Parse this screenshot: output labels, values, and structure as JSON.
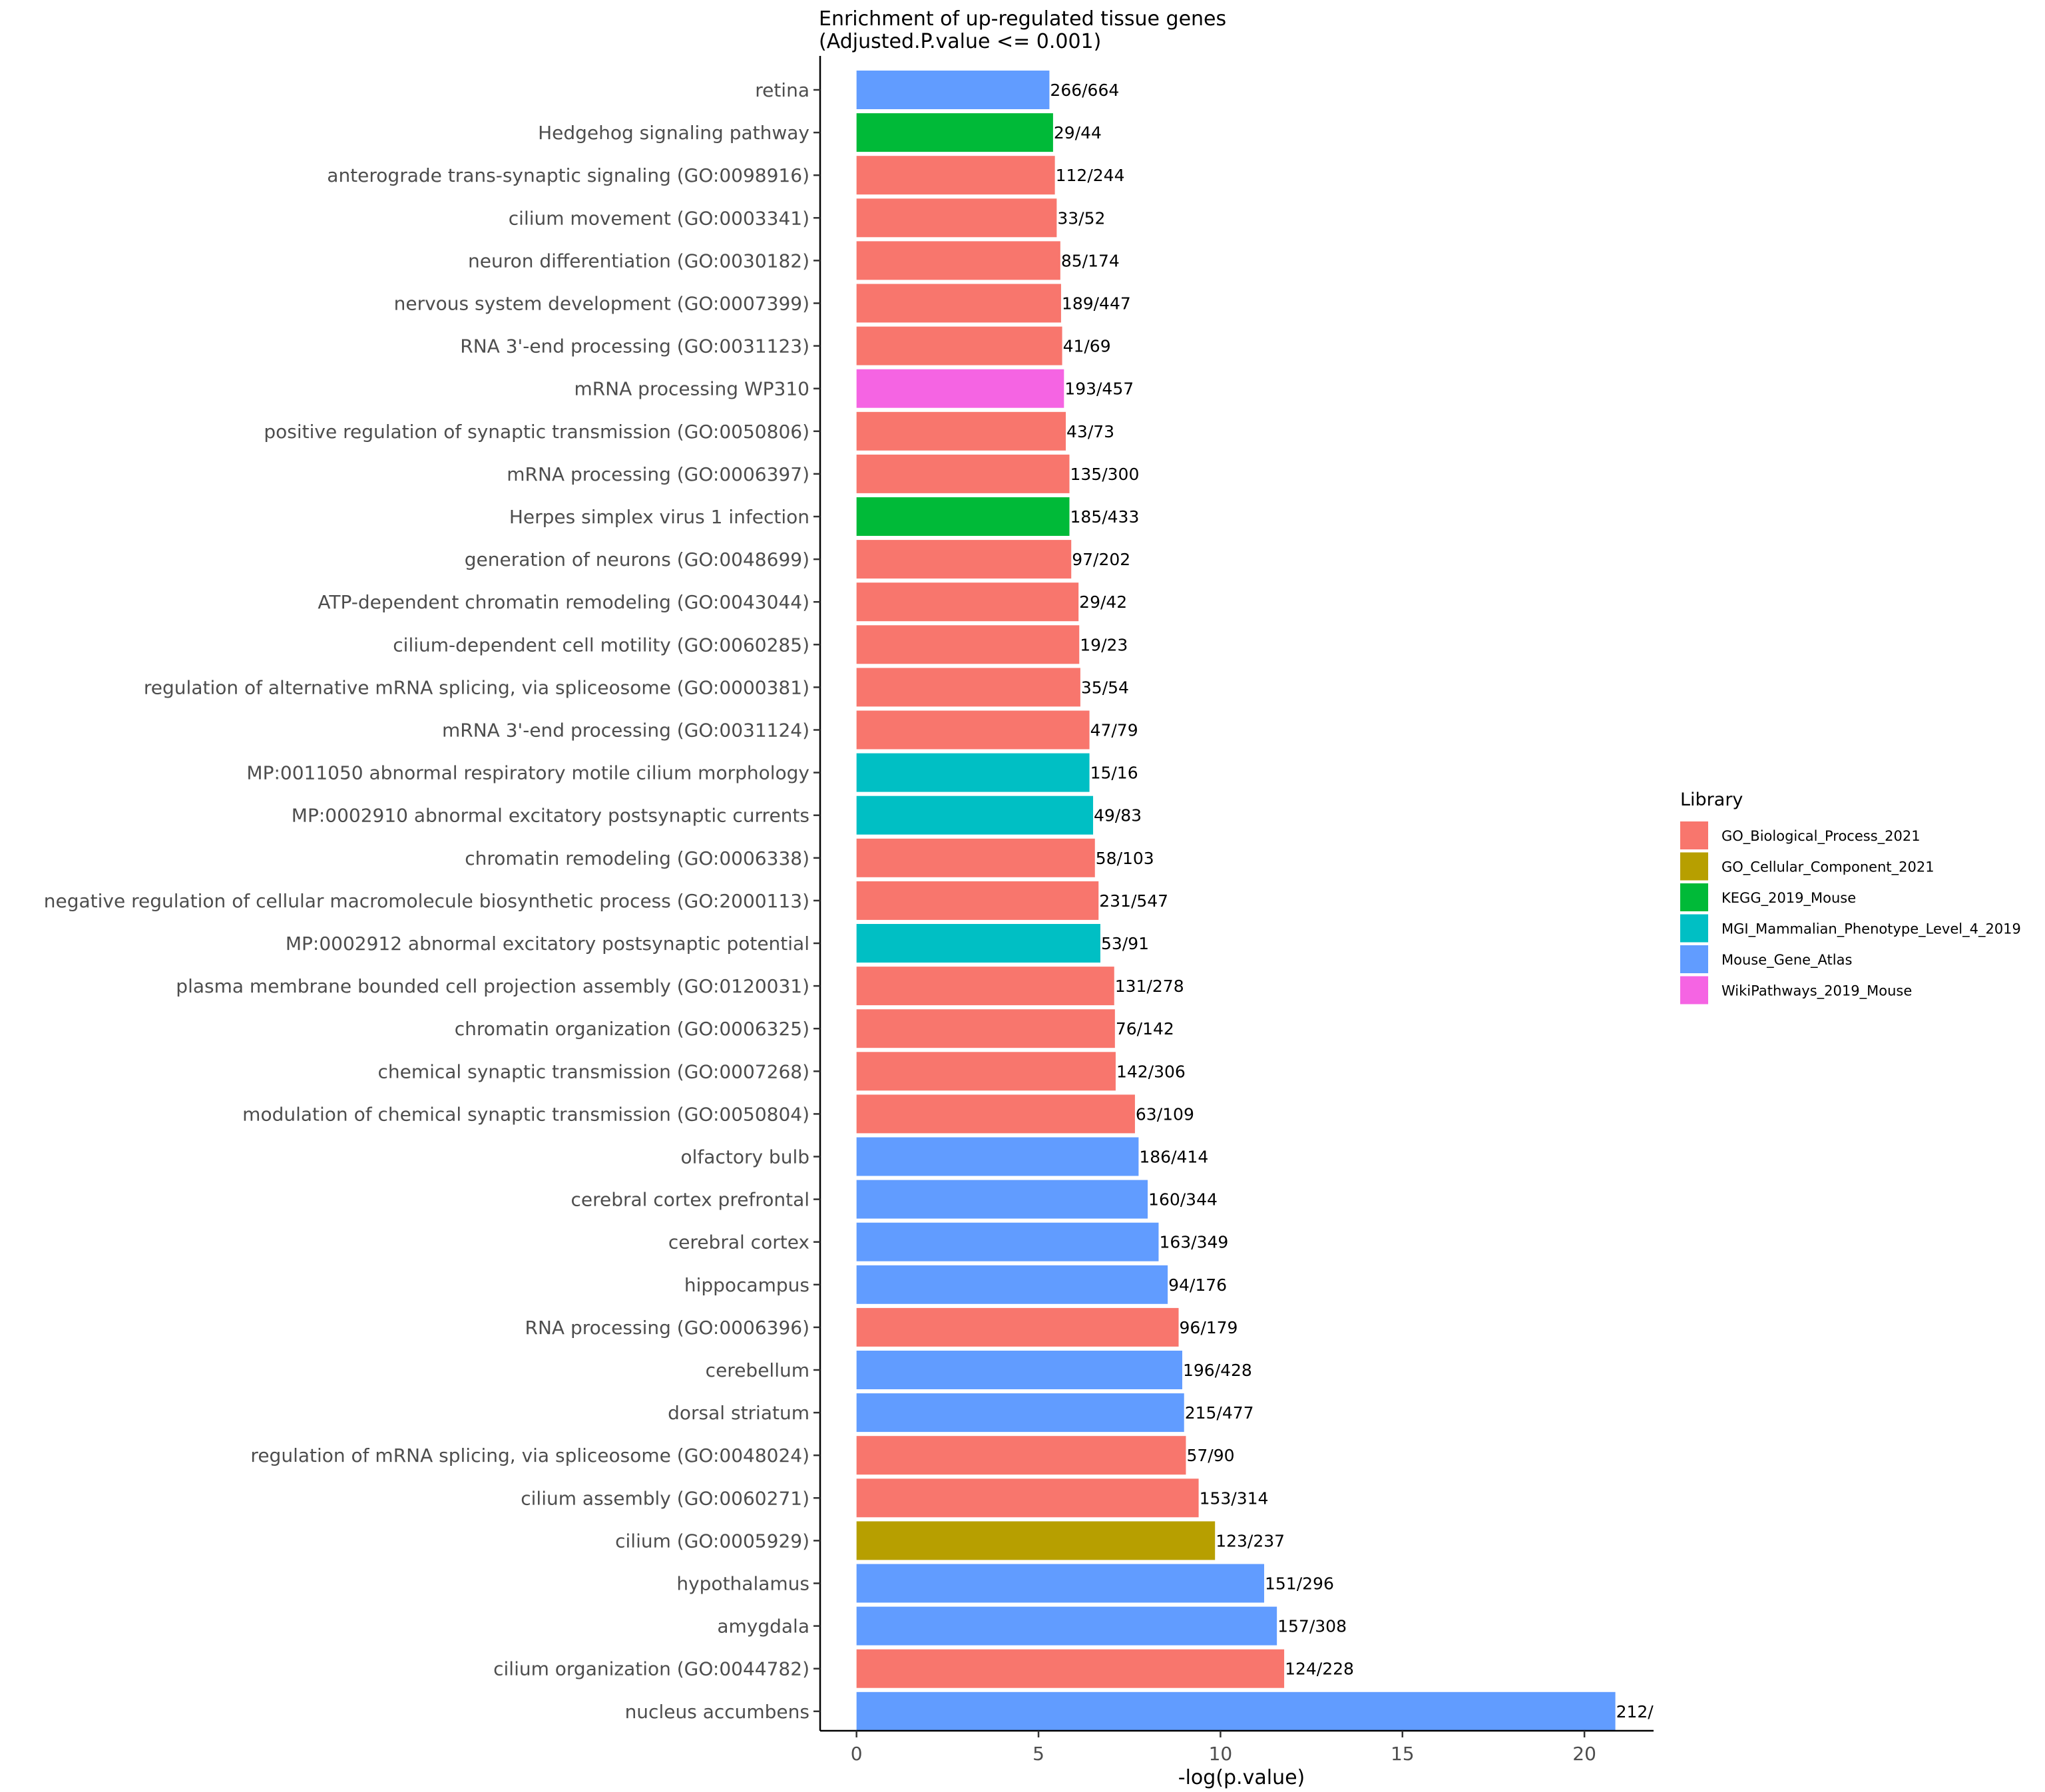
{
  "chart_data": {
    "type": "bar",
    "orientation": "horizontal",
    "title": "Enrichment of up-regulated tissue genes",
    "subtitle": "(Adjusted.P.value <= 0.001)",
    "xlabel": "-log(p.value)",
    "ylabel": "",
    "xlim": [
      -1,
      21.9
    ],
    "xticks": [
      0,
      5,
      10,
      15,
      20
    ],
    "grid": false,
    "legend": {
      "title": "Library",
      "position": "right",
      "entries": [
        {
          "name": "GO_Biological_Process_2021",
          "color": "#F8766D"
        },
        {
          "name": "GO_Cellular_Component_2021",
          "color": "#B79F00"
        },
        {
          "name": "KEGG_2019_Mouse",
          "color": "#00BA38"
        },
        {
          "name": "MGI_Mammalian_Phenotype_Level_4_2019",
          "color": "#00BFC4"
        },
        {
          "name": "Mouse_Gene_Atlas",
          "color": "#619CFF"
        },
        {
          "name": "WikiPathways_2019_Mouse",
          "color": "#F564E3"
        }
      ]
    },
    "bars": [
      {
        "category": "retina",
        "value": 5.3,
        "label": "266/664",
        "library": "Mouse_Gene_Atlas"
      },
      {
        "category": "Hedgehog signaling pathway",
        "value": 5.4,
        "label": "29/44",
        "library": "KEGG_2019_Mouse"
      },
      {
        "category": "anterograde trans-synaptic signaling (GO:0098916)",
        "value": 5.45,
        "label": "112/244",
        "library": "GO_Biological_Process_2021"
      },
      {
        "category": "cilium movement (GO:0003341)",
        "value": 5.5,
        "label": "33/52",
        "library": "GO_Biological_Process_2021"
      },
      {
        "category": "neuron differentiation (GO:0030182)",
        "value": 5.6,
        "label": "85/174",
        "library": "GO_Biological_Process_2021"
      },
      {
        "category": "nervous system development (GO:0007399)",
        "value": 5.62,
        "label": "189/447",
        "library": "GO_Biological_Process_2021"
      },
      {
        "category": "RNA 3'-end processing (GO:0031123)",
        "value": 5.65,
        "label": "41/69",
        "library": "GO_Biological_Process_2021"
      },
      {
        "category": "mRNA processing WP310",
        "value": 5.7,
        "label": "193/457",
        "library": "WikiPathways_2019_Mouse"
      },
      {
        "category": "positive regulation of synaptic transmission (GO:0050806)",
        "value": 5.75,
        "label": "43/73",
        "library": "GO_Biological_Process_2021"
      },
      {
        "category": "mRNA processing (GO:0006397)",
        "value": 5.85,
        "label": "135/300",
        "library": "GO_Biological_Process_2021"
      },
      {
        "category": "Herpes simplex virus 1 infection",
        "value": 5.85,
        "label": "185/433",
        "library": "KEGG_2019_Mouse"
      },
      {
        "category": "generation of neurons (GO:0048699)",
        "value": 5.9,
        "label": "97/202",
        "library": "GO_Biological_Process_2021"
      },
      {
        "category": "ATP-dependent chromatin remodeling (GO:0043044)",
        "value": 6.1,
        "label": "29/42",
        "library": "GO_Biological_Process_2021"
      },
      {
        "category": "cilium-dependent cell motility (GO:0060285)",
        "value": 6.12,
        "label": "19/23",
        "library": "GO_Biological_Process_2021"
      },
      {
        "category": "regulation of alternative mRNA splicing, via spliceosome (GO:0000381)",
        "value": 6.15,
        "label": "35/54",
        "library": "GO_Biological_Process_2021"
      },
      {
        "category": "mRNA 3'-end processing (GO:0031124)",
        "value": 6.4,
        "label": "47/79",
        "library": "GO_Biological_Process_2021"
      },
      {
        "category": "MP:0011050 abnormal respiratory motile cilium morphology",
        "value": 6.4,
        "label": "15/16",
        "library": "MGI_Mammalian_Phenotype_Level_4_2019"
      },
      {
        "category": "MP:0002910 abnormal excitatory postsynaptic currents",
        "value": 6.5,
        "label": "49/83",
        "library": "MGI_Mammalian_Phenotype_Level_4_2019"
      },
      {
        "category": "chromatin remodeling (GO:0006338)",
        "value": 6.55,
        "label": "58/103",
        "library": "GO_Biological_Process_2021"
      },
      {
        "category": "negative regulation of cellular macromolecule biosynthetic process (GO:2000113)",
        "value": 6.65,
        "label": "231/547",
        "library": "GO_Biological_Process_2021"
      },
      {
        "category": "MP:0002912 abnormal excitatory postsynaptic potential",
        "value": 6.7,
        "label": "53/91",
        "library": "MGI_Mammalian_Phenotype_Level_4_2019"
      },
      {
        "category": "plasma membrane bounded cell projection assembly (GO:0120031)",
        "value": 7.08,
        "label": "131/278",
        "library": "GO_Biological_Process_2021"
      },
      {
        "category": "chromatin organization (GO:0006325)",
        "value": 7.1,
        "label": "76/142",
        "library": "GO_Biological_Process_2021"
      },
      {
        "category": "chemical synaptic transmission (GO:0007268)",
        "value": 7.12,
        "label": "142/306",
        "library": "GO_Biological_Process_2021"
      },
      {
        "category": "modulation of chemical synaptic transmission (GO:0050804)",
        "value": 7.65,
        "label": "63/109",
        "library": "GO_Biological_Process_2021"
      },
      {
        "category": "olfactory bulb",
        "value": 7.75,
        "label": "186/414",
        "library": "Mouse_Gene_Atlas"
      },
      {
        "category": "cerebral cortex prefrontal",
        "value": 8.0,
        "label": "160/344",
        "library": "Mouse_Gene_Atlas"
      },
      {
        "category": "cerebral cortex",
        "value": 8.3,
        "label": "163/349",
        "library": "Mouse_Gene_Atlas"
      },
      {
        "category": "hippocampus",
        "value": 8.55,
        "label": "94/176",
        "library": "Mouse_Gene_Atlas"
      },
      {
        "category": "RNA processing (GO:0006396)",
        "value": 8.85,
        "label": "96/179",
        "library": "GO_Biological_Process_2021"
      },
      {
        "category": "cerebellum",
        "value": 8.95,
        "label": "196/428",
        "library": "Mouse_Gene_Atlas"
      },
      {
        "category": "dorsal striatum",
        "value": 9.0,
        "label": "215/477",
        "library": "Mouse_Gene_Atlas"
      },
      {
        "category": "regulation of mRNA splicing, via spliceosome (GO:0048024)",
        "value": 9.05,
        "label": "57/90",
        "library": "GO_Biological_Process_2021"
      },
      {
        "category": "cilium assembly (GO:0060271)",
        "value": 9.4,
        "label": "153/314",
        "library": "GO_Biological_Process_2021"
      },
      {
        "category": "cilium (GO:0005929)",
        "value": 9.85,
        "label": "123/237",
        "library": "GO_Cellular_Component_2021"
      },
      {
        "category": "hypothalamus",
        "value": 11.2,
        "label": "151/296",
        "library": "Mouse_Gene_Atlas"
      },
      {
        "category": "amygdala",
        "value": 11.55,
        "label": "157/308",
        "library": "Mouse_Gene_Atlas"
      },
      {
        "category": "cilium organization (GO:0044782)",
        "value": 11.75,
        "label": "124/228",
        "library": "GO_Biological_Process_2021"
      },
      {
        "category": "nucleus accumbens",
        "value": 20.85,
        "label": "212/",
        "library": "Mouse_Gene_Atlas"
      }
    ]
  }
}
